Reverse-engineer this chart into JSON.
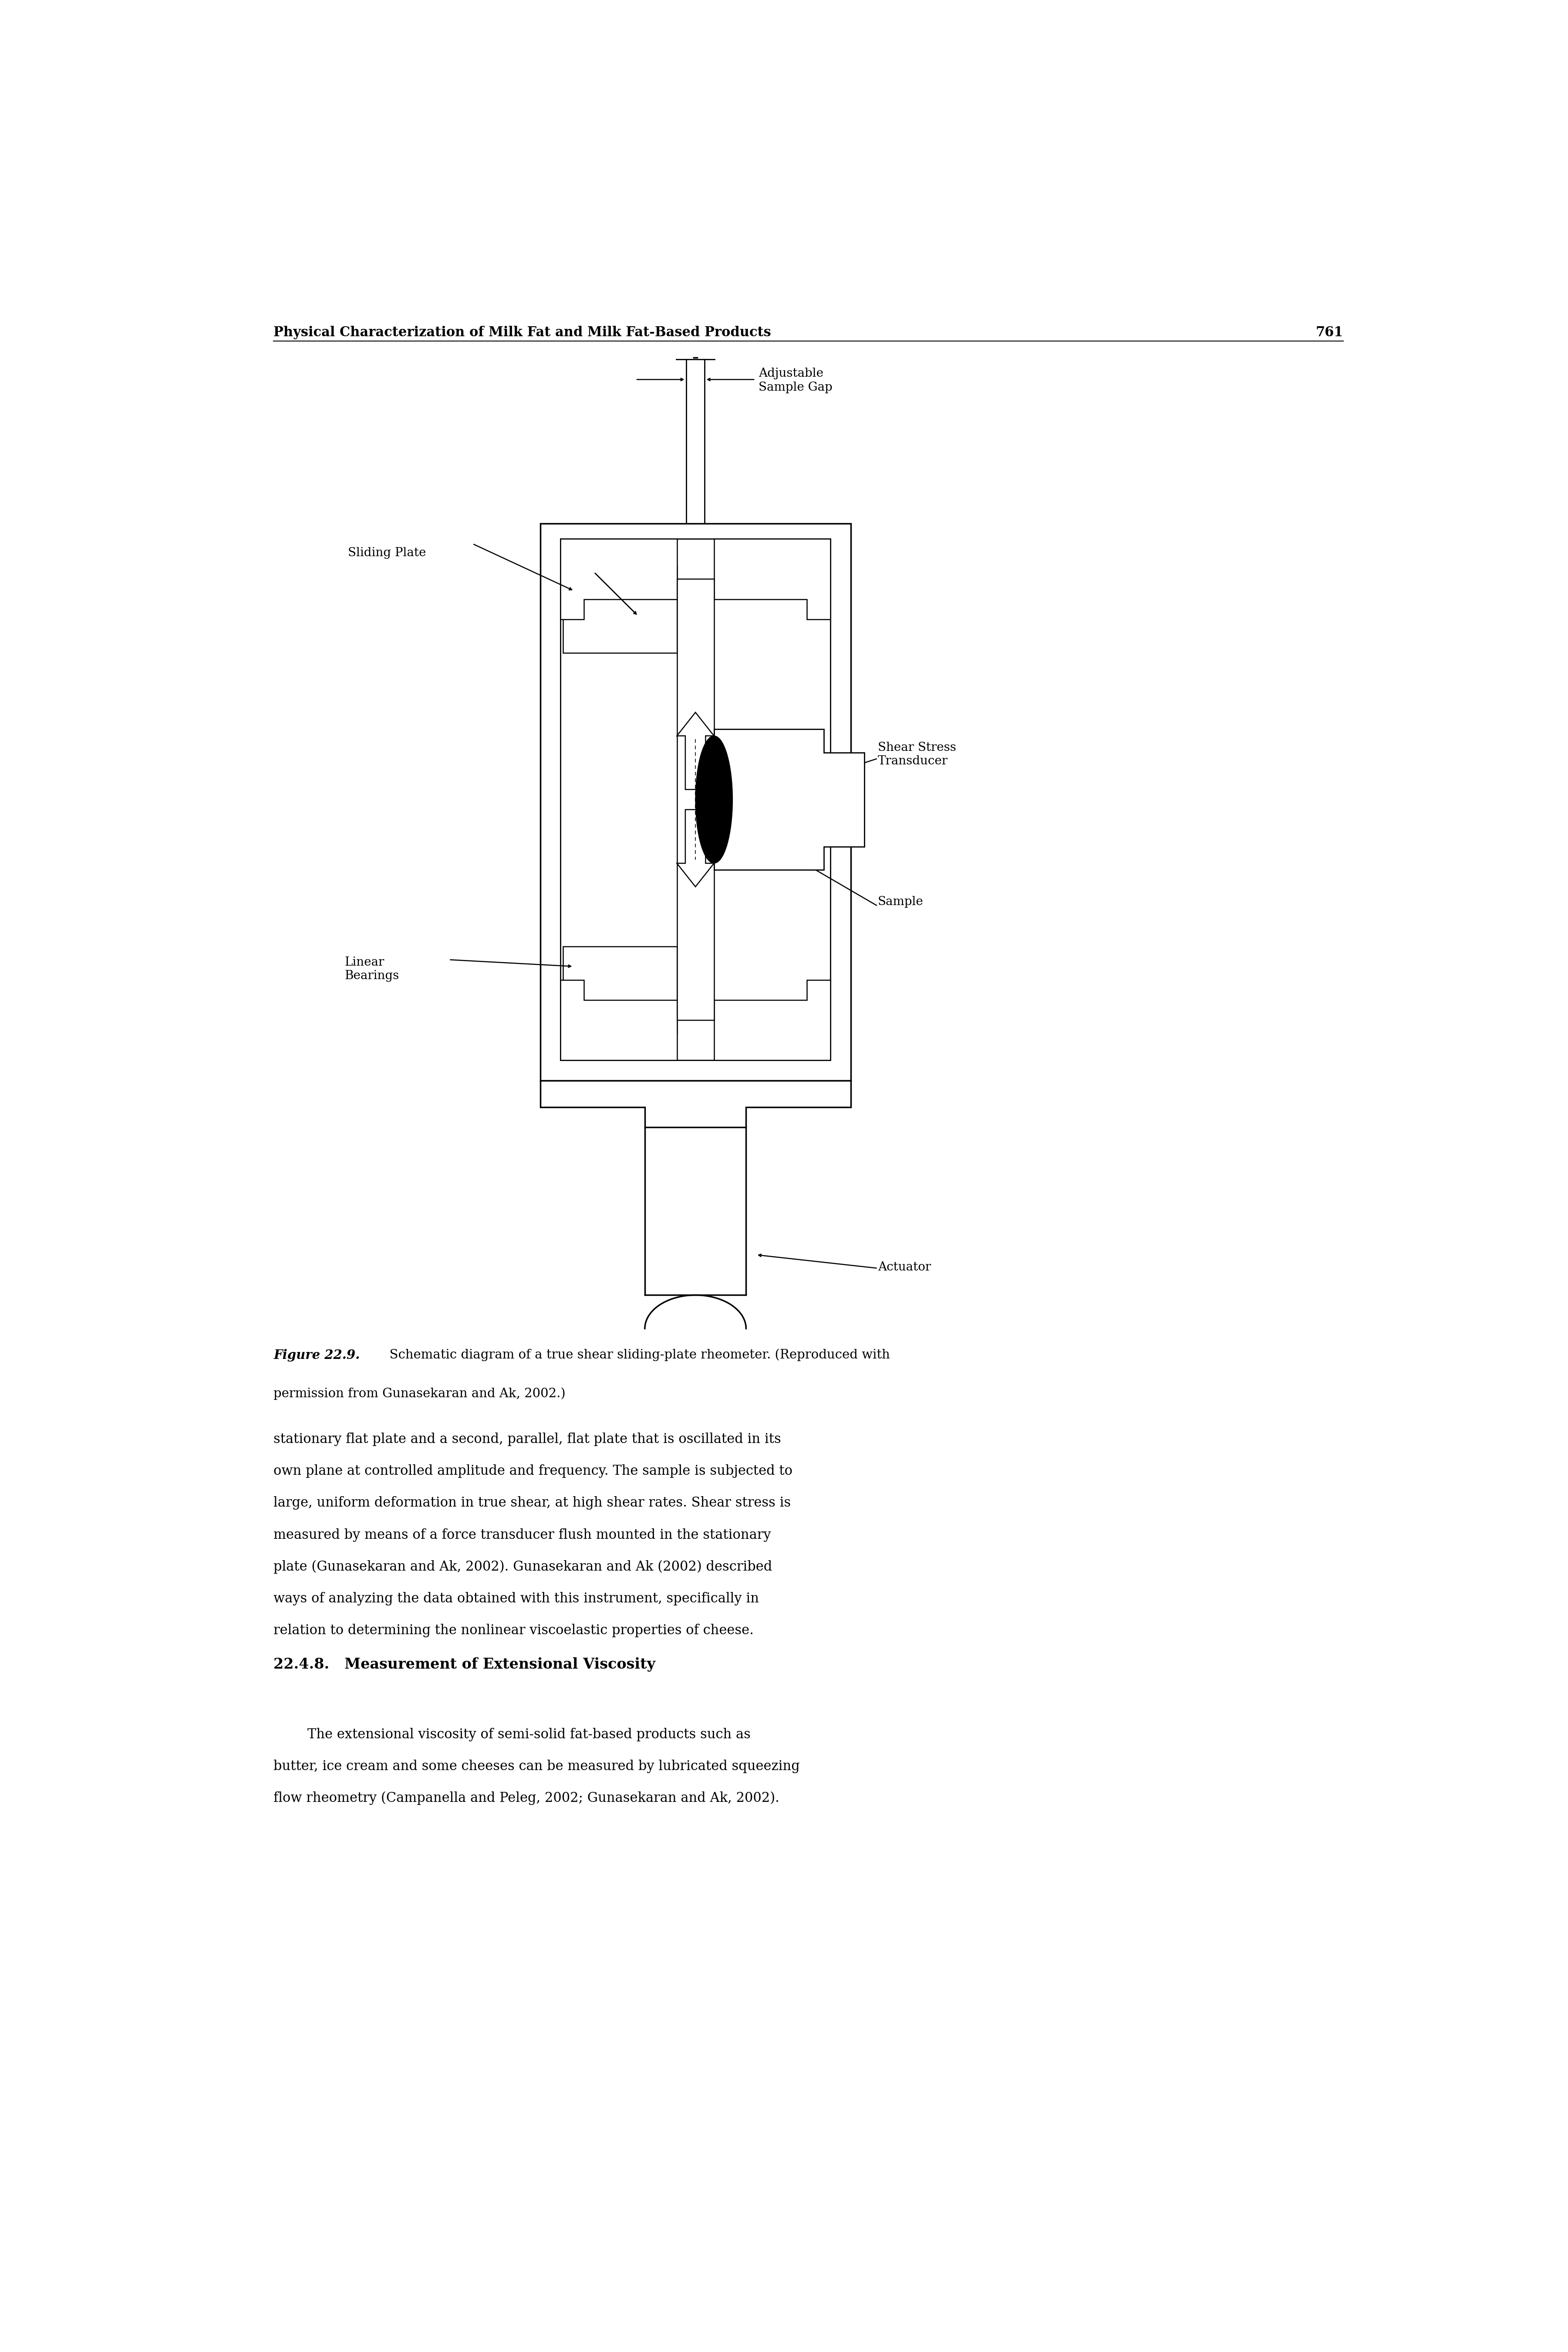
{
  "background_color": "#ffffff",
  "header_text": "Physical Characterization of Milk Fat and Milk Fat-Based Products",
  "page_number": "761",
  "figure_caption_bold": "Figure 22.9.",
  "figure_caption_normal": "  Schematic diagram of a true shear sliding-plate rheometer. (Reproduced with\npermission from Gunasekaran and Ak, 2002.)",
  "body_text_1": "stationary flat plate and a second, parallel, flat plate that is oscillated in its\nown plane at controlled amplitude and frequency. The sample is subjected to\nlarge, uniform deformation in true shear, at high shear rates. Shear stress is\nmeasured by means of a force transducer flush mounted in the stationary\nplate (Gunasekaran and Ak, 2002). Gunasekaran and Ak (2002) described\nways of analyzing the data obtained with this instrument, specifically in\nrelation to determining the nonlinear viscoelastic properties of cheese.",
  "section_heading": "22.4.8.   Measurement of Extensional Viscosity",
  "body_text_2": "        The extensional viscosity of semi-solid fat-based products such as\nbutter, ice cream and some cheeses can be measured by lubricated squeezing\nflow rheometry (Campanella and Peleg, 2002; Gunasekaran and Ak, 2002).",
  "labels": {
    "adjustable_sample_gap": "Adjustable\nSample Gap",
    "sliding_plate": "Sliding Plate",
    "shear_stress_transducer": "Shear Stress\nTransducer",
    "sample": "Sample",
    "linear_bearings": "Linear\nBearings",
    "actuator": "Actuator"
  },
  "lw_thick": 2.5,
  "lw_med": 2.0,
  "lw_thin": 1.5
}
